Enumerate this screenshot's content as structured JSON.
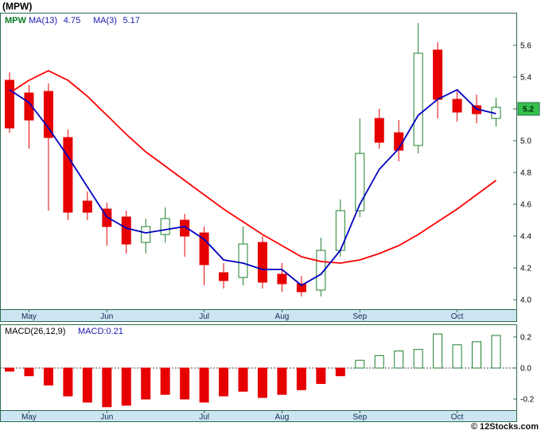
{
  "title": "(MPW)",
  "copyright": "© 12Stocks.com",
  "colors": {
    "border": "#2D6A4F",
    "band_bg": "#CCE5F2",
    "band_text": "#0F2B52",
    "up": "#1E7F2E",
    "down": "#E60000",
    "ma_slow": "#FF0000",
    "ma_fast": "#0000C0",
    "badge_bg": "#35C04D",
    "badge_text": "#002909",
    "legend_symbol": "#0A7A23",
    "legend_ma": "#1818B0",
    "macd_label": "#000000",
    "macd_value": "#1818B0",
    "zero_line": "#444444",
    "tick_text": "#000000"
  },
  "price_panel": {
    "legend": {
      "symbol": "MPW",
      "items": [
        {
          "label": "MA(13)",
          "value": "4.75"
        },
        {
          "label": "MA(3)",
          "value": "5.17"
        }
      ]
    },
    "last_price_badge": "5.2"
  },
  "macd_panel": {
    "legend_label": "MACD(26,12,9)",
    "legend_value": "MACD:0.21"
  },
  "chart_data": [
    {
      "type": "candlestick",
      "title": "MPW weekly candlestick chart with MA(13) and MA(3)",
      "ylim": [
        3.95,
        5.85
      ],
      "y_ticks": [
        "5.6",
        "5.4",
        "5.2",
        "5.0",
        "4.8",
        "4.6",
        "4.4",
        "4.2",
        "4.0"
      ],
      "last_price": "5.2",
      "month_ticks": [
        {
          "label": "May",
          "i": 1
        },
        {
          "label": "Jun",
          "i": 5
        },
        {
          "label": "Jul",
          "i": 10
        },
        {
          "label": "Aug",
          "i": 14
        },
        {
          "label": "Sep",
          "i": 18
        },
        {
          "label": "Oct",
          "i": 23
        }
      ],
      "candles": [
        [
          5.38,
          5.43,
          5.05,
          5.08
        ],
        [
          5.3,
          5.35,
          4.95,
          5.13
        ],
        [
          5.31,
          5.36,
          4.56,
          5.02
        ],
        [
          5.02,
          5.07,
          4.5,
          4.55
        ],
        [
          4.62,
          4.68,
          4.5,
          4.55
        ],
        [
          4.57,
          4.61,
          4.34,
          4.46
        ],
        [
          4.52,
          4.56,
          4.29,
          4.35
        ],
        [
          4.36,
          4.51,
          4.29,
          4.46
        ],
        [
          4.41,
          4.58,
          4.36,
          4.51
        ],
        [
          4.5,
          4.54,
          4.27,
          4.4
        ],
        [
          4.42,
          4.46,
          4.09,
          4.22
        ],
        [
          4.17,
          4.23,
          4.07,
          4.12
        ],
        [
          4.14,
          4.46,
          4.09,
          4.35
        ],
        [
          4.36,
          4.4,
          4.07,
          4.11
        ],
        [
          4.16,
          4.23,
          4.05,
          4.1
        ],
        [
          4.1,
          4.15,
          4.02,
          4.05
        ],
        [
          4.06,
          4.39,
          4.02,
          4.31
        ],
        [
          4.31,
          4.63,
          4.27,
          4.56
        ],
        [
          4.56,
          5.14,
          4.52,
          4.92
        ],
        [
          5.14,
          5.2,
          4.95,
          4.99
        ],
        [
          5.05,
          5.13,
          4.87,
          4.94
        ],
        [
          4.97,
          5.74,
          4.92,
          5.55
        ],
        [
          5.57,
          5.62,
          5.14,
          5.26
        ],
        [
          5.26,
          5.31,
          5.12,
          5.18
        ],
        [
          5.22,
          5.29,
          5.11,
          5.17
        ],
        [
          5.14,
          5.27,
          5.09,
          5.21
        ]
      ],
      "series": [
        {
          "name": "MA(13)",
          "value_label": "4.75",
          "color_key": "ma_slow",
          "values": [
            5.3,
            5.38,
            5.44,
            5.38,
            5.28,
            5.16,
            5.04,
            4.93,
            4.84,
            4.75,
            4.66,
            4.57,
            4.49,
            4.41,
            4.34,
            4.27,
            4.24,
            4.23,
            4.25,
            4.29,
            4.34,
            4.41,
            4.49,
            4.57,
            4.66,
            4.75
          ]
        },
        {
          "name": "MA(3)",
          "value_label": "5.17",
          "color_key": "ma_fast",
          "values": [
            5.32,
            5.24,
            5.08,
            4.9,
            4.71,
            4.52,
            4.45,
            4.42,
            4.44,
            4.46,
            4.38,
            4.25,
            4.23,
            4.19,
            4.19,
            4.09,
            4.16,
            4.31,
            4.6,
            4.82,
            4.95,
            5.16,
            5.26,
            5.32,
            5.2,
            5.17
          ]
        }
      ],
      "legend_position": "top-left",
      "grid": false
    },
    {
      "type": "bar",
      "title": "MACD(26,12,9)",
      "ylim": [
        -0.3,
        0.3
      ],
      "y_ticks": [
        "0.2",
        "0.0",
        "-0.2"
      ],
      "last_value": "0.21",
      "month_ticks": [
        {
          "label": "May",
          "i": 1
        },
        {
          "label": "Jun",
          "i": 5
        },
        {
          "label": "Jul",
          "i": 10
        },
        {
          "label": "Aug",
          "i": 14
        },
        {
          "label": "Sep",
          "i": 18
        },
        {
          "label": "Oct",
          "i": 23
        }
      ],
      "values": [
        -0.02,
        -0.05,
        -0.11,
        -0.18,
        -0.22,
        -0.25,
        -0.24,
        -0.2,
        -0.17,
        -0.2,
        -0.22,
        -0.18,
        -0.15,
        -0.19,
        -0.17,
        -0.14,
        -0.1,
        -0.05,
        0.05,
        0.08,
        0.11,
        0.12,
        0.22,
        0.15,
        0.17,
        0.21
      ],
      "grid": false
    }
  ]
}
